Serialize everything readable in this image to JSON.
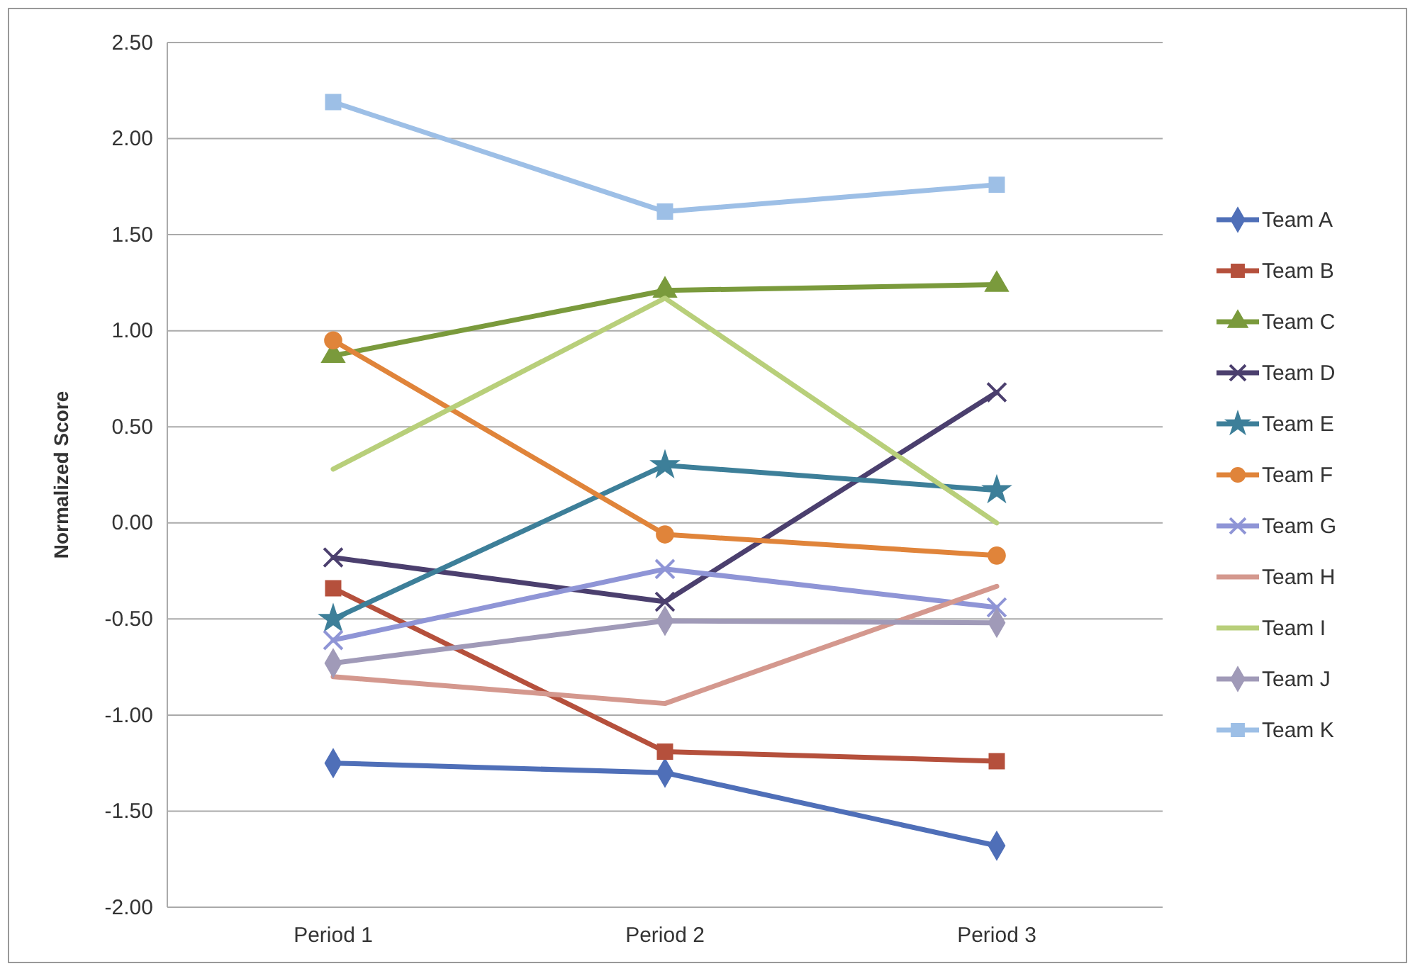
{
  "chart_data": {
    "type": "line",
    "ylabel": "Normalized Score",
    "categories": [
      "Period 1",
      "Period 2",
      "Period 3"
    ],
    "ylim": [
      -2,
      2.5
    ],
    "yticks": [
      {
        "value": -2,
        "label": "-2.00"
      },
      {
        "value": -1.5,
        "label": "-1.50"
      },
      {
        "value": -1,
        "label": "-1.00"
      },
      {
        "value": -0.5,
        "label": "-0.50"
      },
      {
        "value": 0,
        "label": "0.00"
      },
      {
        "value": 0.5,
        "label": "0.50"
      },
      {
        "value": 1,
        "label": "1.00"
      },
      {
        "value": 1.5,
        "label": "1.50"
      },
      {
        "value": 2,
        "label": "2.00"
      },
      {
        "value": 2.5,
        "label": "2.50"
      }
    ],
    "grid": "y",
    "legend": "right",
    "series": [
      {
        "name": "Team A",
        "color": "#4f6fb8",
        "marker": "diamond",
        "values": [
          -1.25,
          -1.3,
          -1.68
        ]
      },
      {
        "name": "Team B",
        "color": "#b5503c",
        "marker": "square",
        "values": [
          -0.34,
          -1.19,
          -1.24
        ]
      },
      {
        "name": "Team C",
        "color": "#7a9a3c",
        "marker": "triangle",
        "values": [
          0.87,
          1.21,
          1.24
        ]
      },
      {
        "name": "Team D",
        "color": "#4b3f6e",
        "marker": "cross",
        "values": [
          -0.18,
          -0.41,
          0.68
        ]
      },
      {
        "name": "Team E",
        "color": "#3d7f99",
        "marker": "star",
        "values": [
          -0.5,
          0.3,
          0.17
        ]
      },
      {
        "name": "Team F",
        "color": "#e0843a",
        "marker": "circle",
        "values": [
          0.95,
          -0.06,
          -0.17
        ]
      },
      {
        "name": "Team G",
        "color": "#8f95d6",
        "marker": "cross",
        "values": [
          -0.61,
          -0.24,
          -0.44
        ]
      },
      {
        "name": "Team H",
        "color": "#d4988e",
        "marker": "none",
        "values": [
          -0.8,
          -0.94,
          -0.33
        ]
      },
      {
        "name": "Team I",
        "color": "#b8cf7a",
        "marker": "none",
        "values": [
          0.28,
          1.17,
          0
        ]
      },
      {
        "name": "Team J",
        "color": "#a09ab8",
        "marker": "diamond",
        "values": [
          -0.73,
          -0.51,
          -0.52
        ]
      },
      {
        "name": "Team K",
        "color": "#9dbfe6",
        "marker": "square",
        "values": [
          2.19,
          1.62,
          1.76
        ]
      }
    ]
  }
}
